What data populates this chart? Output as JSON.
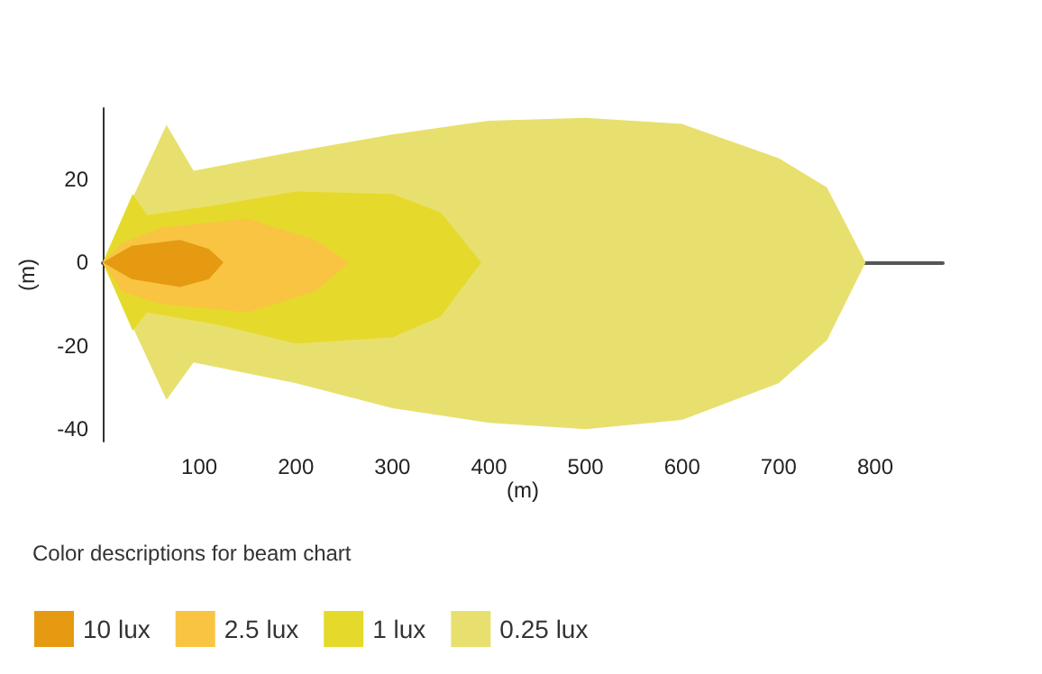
{
  "chart_data": {
    "type": "area",
    "xlabel": "(m)",
    "ylabel": "(m)",
    "legend_title": "Color descriptions for beam chart",
    "legend": "bottom",
    "xlim": [
      0,
      870
    ],
    "xticks": [
      100,
      200,
      300,
      400,
      500,
      600,
      700,
      800
    ],
    "ylim": [
      -43,
      37
    ],
    "yticks": [
      -40,
      -20,
      0,
      20
    ],
    "series": [
      {
        "name": "10 lux",
        "color": "#e59a11",
        "x": [
          0,
          30,
          80,
          110,
          125,
          110,
          80,
          30
        ],
        "values": [
          0,
          4,
          5.4,
          3.2,
          0,
          -4,
          -5.9,
          -4
        ]
      },
      {
        "name": "2.5 lux",
        "color": "#f8c442",
        "x": [
          0,
          20,
          60,
          150,
          220,
          255,
          220,
          150,
          60,
          20
        ],
        "values": [
          0,
          4.7,
          8.3,
          10.5,
          5.4,
          0,
          -7,
          -12,
          -10,
          -7
        ]
      },
      {
        "name": "1 lux",
        "color": "#e5da2c",
        "x": [
          0,
          31,
          46,
          120,
          200,
          300,
          350,
          392,
          350,
          300,
          200,
          120,
          46,
          31
        ],
        "values": [
          0,
          16.4,
          11.3,
          13.8,
          17,
          16.4,
          12,
          0,
          -13,
          -18,
          -19.5,
          -15,
          -12,
          -16.4
        ]
      },
      {
        "name": "0.25 lux",
        "color": "#e8e06e",
        "x": [
          0,
          66,
          94,
          200,
          300,
          400,
          500,
          600,
          700,
          750,
          790,
          750,
          700,
          600,
          500,
          400,
          300,
          200,
          94,
          66
        ],
        "values": [
          0,
          33,
          22,
          26.6,
          30.7,
          34,
          34.7,
          33.2,
          25,
          18,
          0,
          -18.7,
          -29,
          -37.8,
          -40,
          -38.5,
          -35,
          -29,
          -24,
          -33
        ]
      }
    ]
  }
}
